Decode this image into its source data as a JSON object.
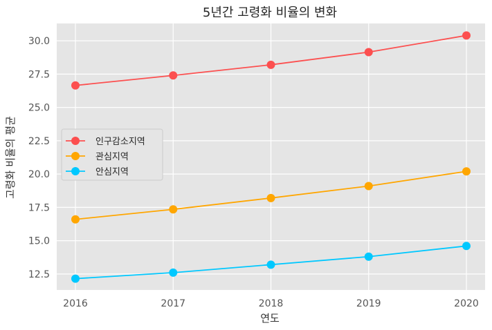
{
  "chart_data": {
    "type": "line",
    "title": "5년간 고령화 비율의 변화",
    "xlabel": "연도",
    "ylabel": "고령화 비율의 평균",
    "categories": [
      "2016",
      "2017",
      "2018",
      "2019",
      "2020"
    ],
    "ylim": [
      11.3,
      31.3
    ],
    "yticks": [
      "12.5",
      "15.0",
      "17.5",
      "20.0",
      "22.5",
      "25.0",
      "27.5",
      "30.0"
    ],
    "grid": true,
    "legend_position": "center-left",
    "series": [
      {
        "name": "인구감소지역",
        "color": "#fc4f4f",
        "values": [
          26.65,
          27.4,
          28.2,
          29.15,
          30.4
        ]
      },
      {
        "name": "관심지역",
        "color": "#ffa600",
        "values": [
          16.6,
          17.35,
          18.2,
          19.1,
          20.2
        ]
      },
      {
        "name": "안심지역",
        "color": "#00c8ff",
        "values": [
          12.15,
          12.6,
          13.2,
          13.8,
          14.6
        ]
      }
    ]
  }
}
